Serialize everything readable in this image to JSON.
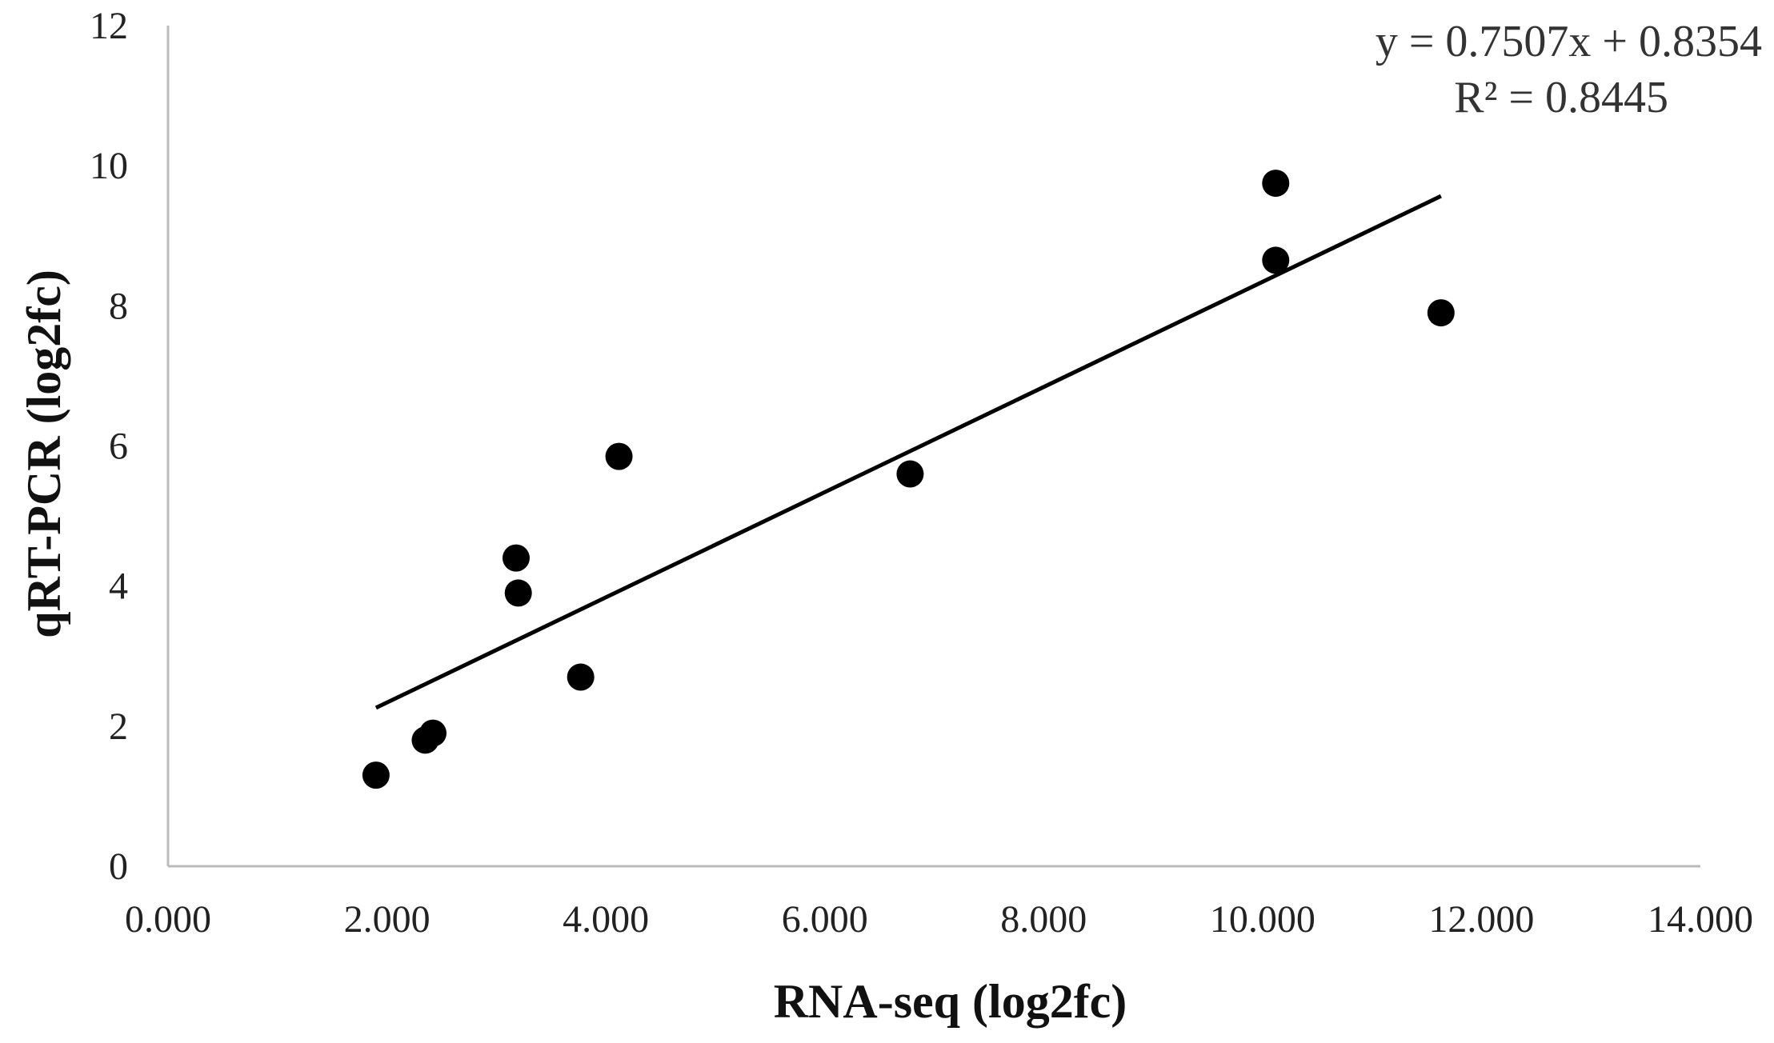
{
  "chart_data": {
    "type": "scatter",
    "title": "",
    "xlabel": "RNA-seq (log2fc)",
    "ylabel": "qRT-PCR (log2fc)",
    "xlim": [
      0,
      14
    ],
    "ylim": [
      0,
      12
    ],
    "x_ticks": [
      "0.000",
      "2.000",
      "4.000",
      "6.000",
      "8.000",
      "10.000",
      "12.000",
      "14.000"
    ],
    "y_ticks": [
      "0",
      "2",
      "4",
      "6",
      "8",
      "10",
      "12"
    ],
    "grid": false,
    "legend": "none",
    "marker_color": "#000000",
    "series": [
      {
        "points": [
          {
            "x": 1.9,
            "y": 1.3
          },
          {
            "x": 2.35,
            "y": 1.8
          },
          {
            "x": 2.42,
            "y": 1.9
          },
          {
            "x": 3.18,
            "y": 4.4
          },
          {
            "x": 3.2,
            "y": 3.9
          },
          {
            "x": 3.77,
            "y": 2.7
          },
          {
            "x": 4.12,
            "y": 5.85
          },
          {
            "x": 6.78,
            "y": 5.6
          },
          {
            "x": 10.12,
            "y": 9.75
          },
          {
            "x": 10.12,
            "y": 8.65
          },
          {
            "x": 11.63,
            "y": 7.9
          }
        ]
      }
    ],
    "trendline": {
      "slope": 0.7507,
      "intercept": 0.8354,
      "x_range": [
        1.9,
        11.63
      ],
      "equation_label": "y = 0.7507x + 0.8354",
      "r2_label": "R² = 0.8445"
    }
  }
}
